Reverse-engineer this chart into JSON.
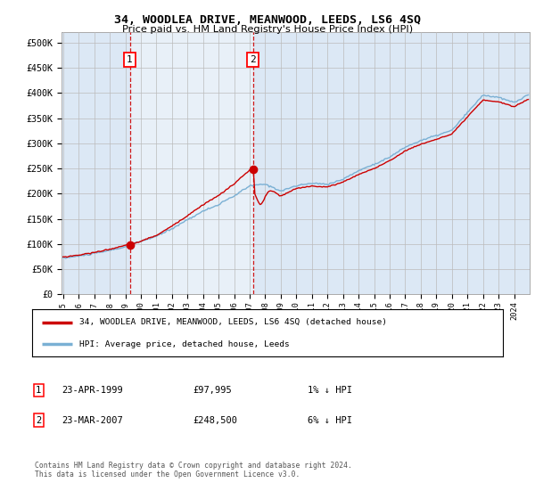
{
  "title": "34, WOODLEA DRIVE, MEANWOOD, LEEDS, LS6 4SQ",
  "subtitle": "Price paid vs. HM Land Registry's House Price Index (HPI)",
  "legend_line1": "34, WOODLEA DRIVE, MEANWOOD, LEEDS, LS6 4SQ (detached house)",
  "legend_line2": "HPI: Average price, detached house, Leeds",
  "annotation1_label": "1",
  "annotation1_date": "23-APR-1999",
  "annotation1_price": "£97,995",
  "annotation1_hpi": "1% ↓ HPI",
  "annotation2_label": "2",
  "annotation2_date": "23-MAR-2007",
  "annotation2_price": "£248,500",
  "annotation2_hpi": "6% ↓ HPI",
  "footnote": "Contains HM Land Registry data © Crown copyright and database right 2024.\nThis data is licensed under the Open Government Licence v3.0.",
  "plot_bg_color": "#dce8f5",
  "shade_color": "#c8d8ee",
  "grid_color": "#bbbbbb",
  "red_line_color": "#cc0000",
  "blue_line_color": "#7ab0d4",
  "marker_color": "#cc0000",
  "dashed_color": "#cc0000",
  "ylim": [
    0,
    520000
  ],
  "yticks": [
    0,
    50000,
    100000,
    150000,
    200000,
    250000,
    300000,
    350000,
    400000,
    450000,
    500000
  ],
  "ytick_labels": [
    "£0",
    "£50K",
    "£100K",
    "£150K",
    "£200K",
    "£250K",
    "£300K",
    "£350K",
    "£400K",
    "£450K",
    "£500K"
  ],
  "sale1_x": 1999.29,
  "sale1_y": 97995,
  "sale2_x": 2007.21,
  "sale2_y": 248500,
  "xtick_years": [
    1995,
    1996,
    1997,
    1998,
    1999,
    2000,
    2001,
    2002,
    2003,
    2004,
    2005,
    2006,
    2007,
    2008,
    2009,
    2010,
    2011,
    2012,
    2013,
    2014,
    2015,
    2016,
    2017,
    2018,
    2019,
    2020,
    2021,
    2022,
    2023,
    2024
  ],
  "xlim_start": 1994.9,
  "xlim_end": 2025.0
}
